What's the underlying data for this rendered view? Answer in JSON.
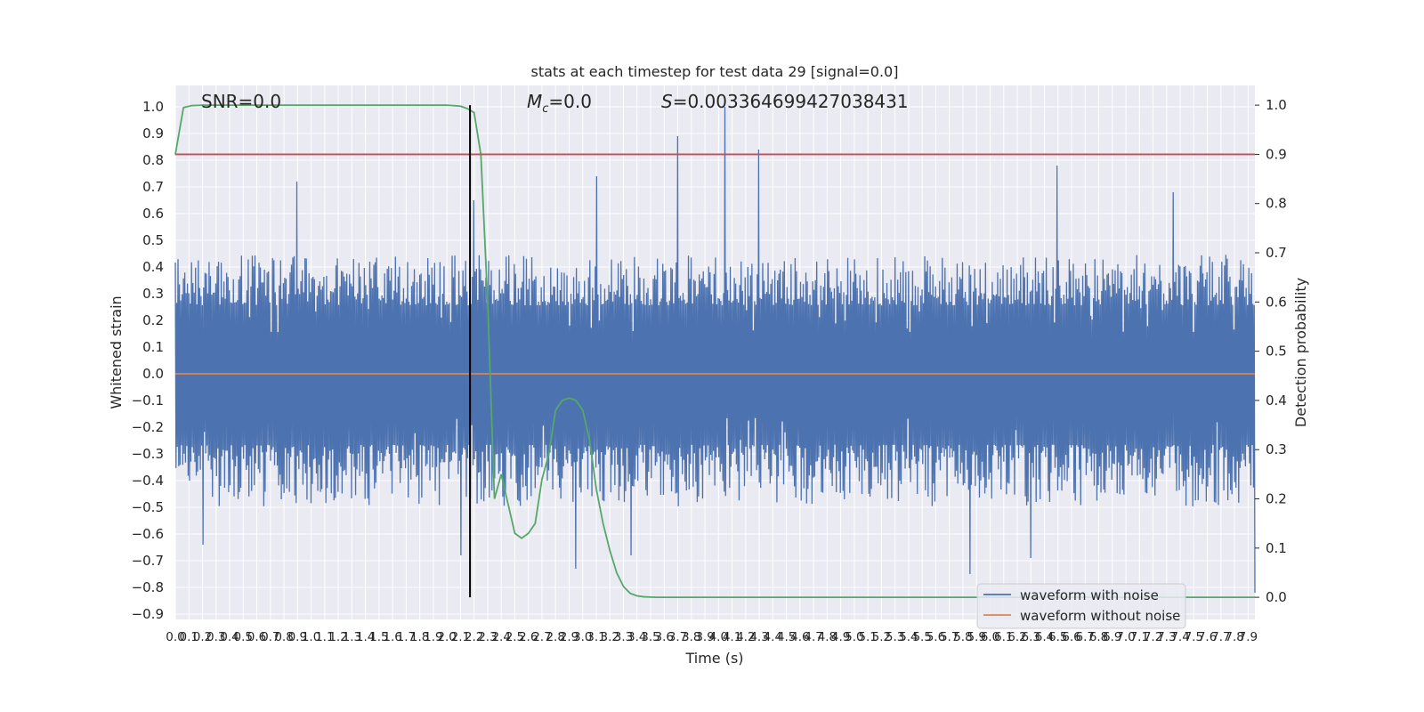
{
  "chart_data": {
    "type": "line",
    "title": "stats at each timestep for test data 29 [signal=0.0]",
    "xlabel": "Time (s)",
    "ylabel": "Whitened strain",
    "y2label": "Detection probability",
    "xlim": [
      0.0,
      7.95
    ],
    "ylim": [
      -0.92,
      1.08
    ],
    "y2lim": [
      -0.045,
      1.04
    ],
    "x_ticks": [
      "0.0",
      "0.1",
      "0.2",
      "0.3",
      "0.4",
      "0.5",
      "0.6",
      "0.7",
      "0.8",
      "0.9",
      "1.0",
      "1.1",
      "1.2",
      "1.3",
      "1.4",
      "1.5",
      "1.6",
      "1.7",
      "1.8",
      "1.9",
      "2.0",
      "2.1",
      "2.2",
      "2.3",
      "2.4",
      "2.5",
      "2.6",
      "2.7",
      "2.8",
      "2.9",
      "3.0",
      "3.1",
      "3.2",
      "3.3",
      "3.4",
      "3.5",
      "3.6",
      "3.7",
      "3.8",
      "3.9",
      "4.0",
      "4.1",
      "4.2",
      "4.3",
      "4.4",
      "4.5",
      "4.6",
      "4.7",
      "4.8",
      "4.9",
      "5.0",
      "5.1",
      "5.2",
      "5.3",
      "5.4",
      "5.5",
      "5.6",
      "5.7",
      "5.8",
      "5.9",
      "6.0",
      "6.1",
      "6.2",
      "6.3",
      "6.4",
      "6.5",
      "6.6",
      "6.7",
      "6.8",
      "6.9",
      "7.0",
      "7.1",
      "7.2",
      "7.3",
      "7.4",
      "7.5",
      "7.6",
      "7.7",
      "7.8",
      "7.9"
    ],
    "y_ticks": [
      "1.0",
      "0.9",
      "0.8",
      "0.7",
      "0.6",
      "0.5",
      "0.4",
      "0.3",
      "0.2",
      "0.1",
      "0.0",
      "−0.1",
      "−0.2",
      "−0.3",
      "−0.4",
      "−0.5",
      "−0.6",
      "−0.7",
      "−0.8",
      "−0.9"
    ],
    "y2_ticks": [
      "1.0",
      "0.9",
      "0.8",
      "0.7",
      "0.6",
      "0.5",
      "0.4",
      "0.3",
      "0.2",
      "0.1",
      "0.0"
    ],
    "annotations": {
      "snr": "SNR=0.0",
      "mc_symbol": "M",
      "mc_subscript": "c",
      "mc_value": "=0.0",
      "s_symbol": "S",
      "s_value": "=0.003364699427038431"
    },
    "series": [
      {
        "name": "waveform with noise",
        "color": "#4c72b0",
        "noise": {
          "upper_median": 0.27,
          "lower_median": -0.28,
          "typical_max": 0.45,
          "typical_min": -0.5
        },
        "peaks": [
          [
            0.9,
            0.72
          ],
          [
            2.2,
            0.65
          ],
          [
            3.1,
            0.74
          ],
          [
            3.7,
            0.89
          ],
          [
            4.05,
            1.0
          ],
          [
            4.3,
            0.84
          ],
          [
            6.5,
            0.78
          ],
          [
            7.35,
            0.68
          ]
        ],
        "troughs": [
          [
            0.2,
            -0.64
          ],
          [
            2.1,
            -0.68
          ],
          [
            2.95,
            -0.73
          ],
          [
            3.35,
            -0.68
          ],
          [
            5.85,
            -0.75
          ],
          [
            6.3,
            -0.69
          ],
          [
            7.95,
            -0.82
          ]
        ]
      },
      {
        "name": "waveform without noise",
        "color": "#dd8452",
        "x": [
          0.0,
          7.95
        ],
        "y": [
          0.0,
          0.0
        ]
      },
      {
        "color": "#55a868",
        "axis": "secondary",
        "x": [
          0.0,
          0.06,
          0.12,
          0.2,
          0.5,
          1.0,
          1.5,
          2.0,
          2.1,
          2.15,
          2.2,
          2.25,
          2.3,
          2.35,
          2.4,
          2.45,
          2.5,
          2.55,
          2.6,
          2.65,
          2.7,
          2.75,
          2.8,
          2.85,
          2.9,
          2.95,
          3.0,
          3.05,
          3.1,
          3.15,
          3.2,
          3.25,
          3.3,
          3.35,
          3.4,
          3.45,
          3.5,
          3.55,
          3.6,
          3.8,
          4.5,
          5.5,
          6.5,
          7.5,
          7.95
        ],
        "y": [
          0.9,
          0.995,
          0.999,
          1.0,
          1.0,
          1.0,
          1.0,
          1.0,
          0.998,
          0.993,
          0.985,
          0.9,
          0.6,
          0.2,
          0.25,
          0.19,
          0.13,
          0.12,
          0.13,
          0.15,
          0.24,
          0.29,
          0.38,
          0.4,
          0.405,
          0.4,
          0.38,
          0.32,
          0.22,
          0.15,
          0.095,
          0.05,
          0.022,
          0.008,
          0.003,
          0.001,
          0.0005,
          0.0,
          0.0,
          0.0,
          0.0,
          0.0,
          0.0,
          0.0,
          0.0
        ]
      },
      {
        "color": "#c44e52",
        "axis": "secondary",
        "x": [
          0.0,
          7.95
        ],
        "y": [
          0.9,
          0.9
        ]
      },
      {
        "color": "#000000",
        "axis": "secondary",
        "x": [
          2.17,
          2.17
        ],
        "y": [
          0.0,
          1.0
        ]
      }
    ],
    "grid": true,
    "legend": "lower-right"
  }
}
